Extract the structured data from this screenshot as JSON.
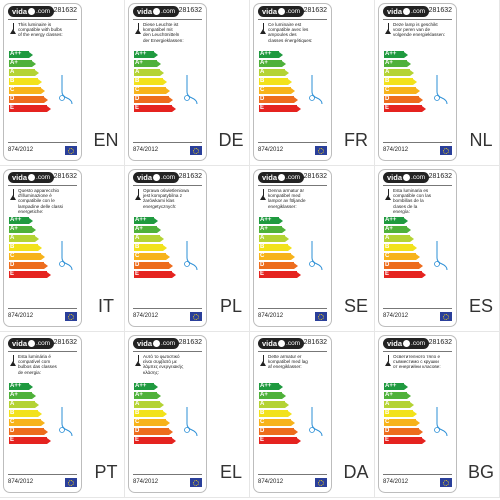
{
  "brand": {
    "logo_text": "vida",
    "logo_suffix": "com"
  },
  "label": {
    "product_code": "281632",
    "regulation": "874/2012",
    "energy_classes": [
      "A++",
      "A+",
      "A",
      "B",
      "C",
      "D",
      "E"
    ],
    "class_colors": [
      "#1f9a3f",
      "#4fb13a",
      "#b4d334",
      "#f2e21b",
      "#f7b31b",
      "#ed6c1d",
      "#e5231f"
    ]
  },
  "cards": [
    {
      "lang": "EN",
      "text": "This luminaire is\ncompatible with bulbs\nof the energy classes:"
    },
    {
      "lang": "DE",
      "text": "Diese Leuchte ist\nkompatibel mit\nden Leuchtmitteln\nder Energieklassen:"
    },
    {
      "lang": "FR",
      "text": "Ce luminaire est\ncompatible avec les\nampoules des\nclasses énergétiques:"
    },
    {
      "lang": "NL",
      "text": "Deze lamp is geschikt\nvoor peren van de\nvolgende energieklassen:"
    },
    {
      "lang": "IT",
      "text": "Questo apparecchio\nd'illuminazione è\ncompatibile con le\nlampadine delle classi\nenergetiche:"
    },
    {
      "lang": "PL",
      "text": "Oprawa oświetleniowa\njest kompatybilna z\nżarówkami klas\nenergetycznych:"
    },
    {
      "lang": "SE",
      "text": "Denna armatur är\nkompatibel med\nlampor av följande\nenergiklasser:"
    },
    {
      "lang": "ES",
      "text": "Esta luminaria es\ncompatible con las\nbombillas de la\nclases de la\nenergía:"
    },
    {
      "lang": "PT",
      "text": "Esta luminária é\ncompatível com\nbulbos das classes\nde energia:"
    },
    {
      "lang": "EL",
      "text": "Αυτό το φωτιστικό\nείναι συμβατό με\nλάμπες ενεργειακής\nκλάσης:"
    },
    {
      "lang": "DA",
      "text": "Dette armatur er\nkompatibel med lag\naf energiklasser:"
    },
    {
      "lang": "BG",
      "text": "Осветителното тяло е\nсъвместимо с крушки\nот енергийни класове:"
    }
  ]
}
